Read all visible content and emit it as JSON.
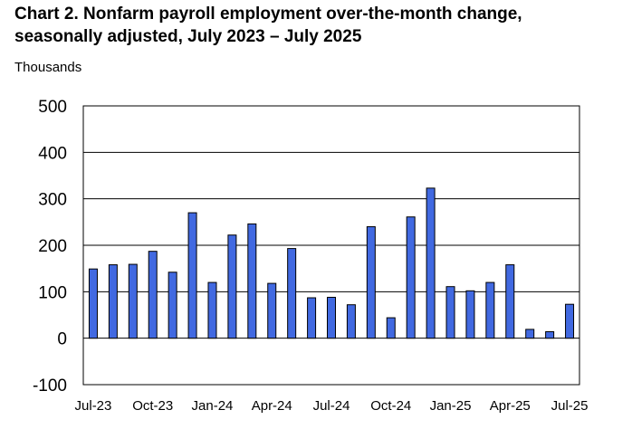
{
  "title_line1": "Chart 2. Nonfarm payroll employment over-the-month change,",
  "title_line2": "seasonally adjusted, July 2023 – July 2025",
  "unit_label": "Thousands",
  "colors": {
    "bar_fill": "#4169E1",
    "bar_stroke": "#000000",
    "grid": "#000000"
  },
  "chart_data": {
    "type": "bar",
    "title": "Chart 2. Nonfarm payroll employment over-the-month change, seasonally adjusted, July 2023 – July 2025",
    "xlabel": "",
    "ylabel": "Thousands",
    "ylim": [
      -100,
      500
    ],
    "yticks": [
      -100,
      0,
      100,
      200,
      300,
      400,
      500
    ],
    "grid": true,
    "categories": [
      "Jul-23",
      "Aug-23",
      "Sep-23",
      "Oct-23",
      "Nov-23",
      "Dec-23",
      "Jan-24",
      "Feb-24",
      "Mar-24",
      "Apr-24",
      "May-24",
      "Jun-24",
      "Jul-24",
      "Aug-24",
      "Sep-24",
      "Oct-24",
      "Nov-24",
      "Dec-24",
      "Jan-25",
      "Feb-25",
      "Mar-25",
      "Apr-25",
      "May-25",
      "Jun-25",
      "Jul-25"
    ],
    "xtick_labels": [
      "Jul-23",
      "Oct-23",
      "Jan-24",
      "Apr-24",
      "Jul-24",
      "Oct-24",
      "Jan-25",
      "Apr-25",
      "Jul-25"
    ],
    "values": [
      149,
      158,
      159,
      187,
      142,
      270,
      120,
      222,
      246,
      118,
      193,
      87,
      88,
      72,
      240,
      44,
      261,
      323,
      111,
      102,
      120,
      158,
      19,
      14,
      73
    ]
  }
}
